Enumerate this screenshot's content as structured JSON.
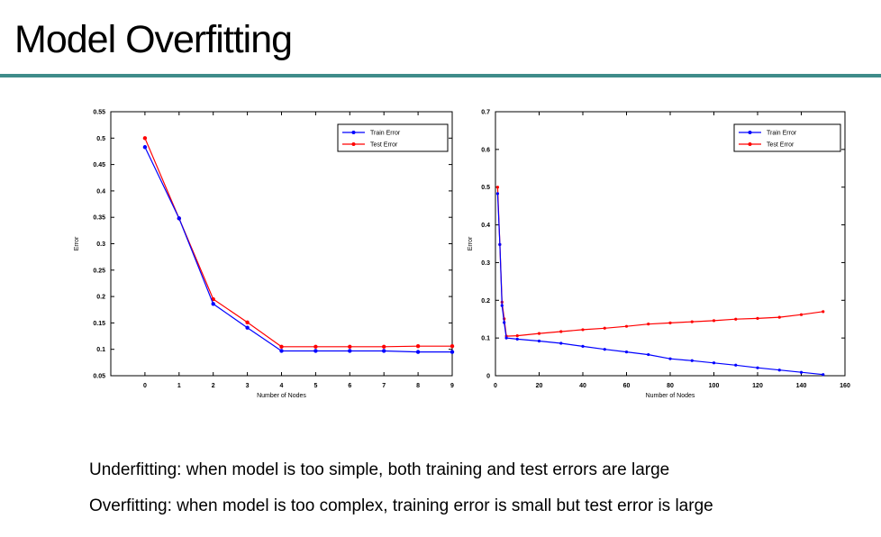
{
  "slide": {
    "title": "Model Overfitting",
    "accent_color": "#3f8c8a",
    "captions": [
      "Underfitting: when model is too simple, both training and test errors are large",
      "Overfitting: when model is too complex, training error is small but test error is large"
    ]
  },
  "chart_data": [
    {
      "type": "line",
      "xlabel": "Number of Nodes",
      "ylabel": "Error",
      "xlim": [
        -1,
        9
      ],
      "ylim": [
        0.05,
        0.55
      ],
      "xticks": [
        0,
        1,
        2,
        3,
        4,
        5,
        6,
        7,
        8,
        9
      ],
      "yticks": [
        0.05,
        0.1,
        0.15,
        0.2,
        0.25,
        0.3,
        0.35,
        0.4,
        0.45,
        0.5,
        0.55
      ],
      "ytick_labels": [
        "0.05",
        "0.1",
        "0.15",
        "0.2",
        "0.25",
        "0.3",
        "0.35",
        "0.4",
        "0.45",
        "0.5",
        "0.55"
      ],
      "legend_position": "top-right",
      "grid": false,
      "series": [
        {
          "name": "Train Error",
          "color": "#0000ff",
          "x": [
            0,
            1,
            2,
            3,
            4,
            5,
            6,
            7,
            8,
            9
          ],
          "y": [
            0.483,
            0.348,
            0.186,
            0.141,
            0.097,
            0.097,
            0.097,
            0.097,
            0.095,
            0.095
          ]
        },
        {
          "name": "Test Error",
          "color": "#ff0000",
          "x": [
            0,
            1,
            2,
            3,
            4,
            5,
            6,
            7,
            8,
            9
          ],
          "y": [
            0.5,
            0.348,
            0.195,
            0.151,
            0.105,
            0.105,
            0.105,
            0.105,
            0.106,
            0.106
          ]
        }
      ]
    },
    {
      "type": "line",
      "xlabel": "Number of Nodes",
      "ylabel": "Error",
      "xlim": [
        0,
        160
      ],
      "ylim": [
        0,
        0.7
      ],
      "xticks": [
        0,
        20,
        40,
        60,
        80,
        100,
        120,
        140,
        160
      ],
      "yticks": [
        0,
        0.1,
        0.2,
        0.3,
        0.4,
        0.5,
        0.6,
        0.7
      ],
      "ytick_labels": [
        "0",
        "0.1",
        "0.2",
        "0.3",
        "0.4",
        "0.5",
        "0.6",
        "0.7"
      ],
      "legend_position": "top-right",
      "grid": false,
      "series": [
        {
          "name": "Train Error",
          "color": "#0000ff",
          "x": [
            1,
            2,
            3,
            4,
            5,
            10,
            20,
            30,
            40,
            50,
            60,
            70,
            80,
            90,
            100,
            110,
            120,
            130,
            140,
            150
          ],
          "y": [
            0.483,
            0.348,
            0.186,
            0.141,
            0.1,
            0.097,
            0.092,
            0.086,
            0.078,
            0.07,
            0.063,
            0.056,
            0.045,
            0.04,
            0.034,
            0.028,
            0.021,
            0.015,
            0.009,
            0.003
          ]
        },
        {
          "name": "Test Error",
          "color": "#ff0000",
          "x": [
            1,
            2,
            3,
            4,
            5,
            10,
            20,
            30,
            40,
            50,
            60,
            70,
            80,
            90,
            100,
            110,
            120,
            130,
            140,
            150
          ],
          "y": [
            0.5,
            0.348,
            0.195,
            0.151,
            0.105,
            0.106,
            0.112,
            0.117,
            0.122,
            0.126,
            0.131,
            0.137,
            0.14,
            0.143,
            0.146,
            0.15,
            0.152,
            0.155,
            0.162,
            0.17
          ]
        }
      ]
    }
  ]
}
